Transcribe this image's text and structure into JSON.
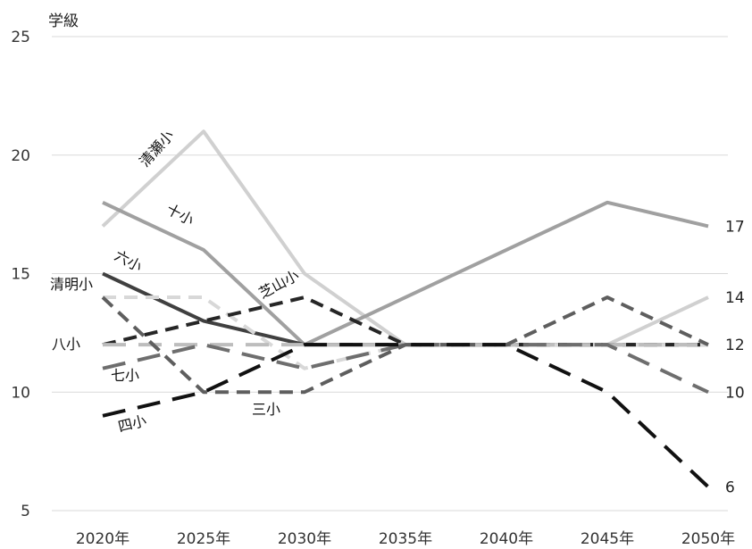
{
  "chart_data": {
    "type": "line",
    "ylabel": "学級",
    "xlabel": "",
    "ylim": [
      5,
      25
    ],
    "y_ticks": [
      "5",
      "10",
      "15",
      "20",
      "25"
    ],
    "categories": [
      "2020年",
      "2025年",
      "2030年",
      "2035年",
      "2040年",
      "2045年",
      "2050年"
    ],
    "grid": true,
    "legend": "none (series labeled directly on lines)",
    "series": [
      {
        "name": "清瀬小",
        "values": [
          17,
          21,
          15,
          12,
          12,
          12,
          14
        ],
        "color": "#d0d0d0",
        "dash": "solid",
        "end_label": "14"
      },
      {
        "name": "十小",
        "values": [
          18,
          16,
          12,
          14,
          16,
          18,
          17
        ],
        "color": "#a0a0a0",
        "dash": "solid",
        "end_label": "17"
      },
      {
        "name": "六小",
        "values": [
          15,
          13,
          12,
          12,
          12,
          12,
          12
        ],
        "color": "#404040",
        "dash": "solid",
        "end_label": ""
      },
      {
        "name": "清明小",
        "values": [
          14,
          14,
          11,
          12,
          12,
          12,
          12
        ],
        "color": "#d8d8d8",
        "dash": "dash",
        "end_label": ""
      },
      {
        "name": "芝山小",
        "values": [
          12,
          13,
          14,
          12,
          12,
          12,
          12
        ],
        "color": "#262626",
        "dash": "dash",
        "end_label": ""
      },
      {
        "name": "八小",
        "values": [
          12,
          12,
          12,
          12,
          12,
          12,
          12
        ],
        "color": "#bdbdbd",
        "dash": "longdash",
        "end_label": "12"
      },
      {
        "name": "七小",
        "values": [
          11,
          12,
          11,
          12,
          12,
          12,
          10
        ],
        "color": "#6e6e6e",
        "dash": "longdash",
        "end_label": "10"
      },
      {
        "name": "三小",
        "values": [
          14,
          10,
          10,
          12,
          12,
          14,
          12
        ],
        "color": "#5e5e5e",
        "dash": "dash",
        "end_label": ""
      },
      {
        "name": "四小",
        "values": [
          9,
          10,
          12,
          12,
          12,
          10,
          6
        ],
        "color": "#111111",
        "dash": "longdash",
        "end_label": "6"
      }
    ]
  }
}
